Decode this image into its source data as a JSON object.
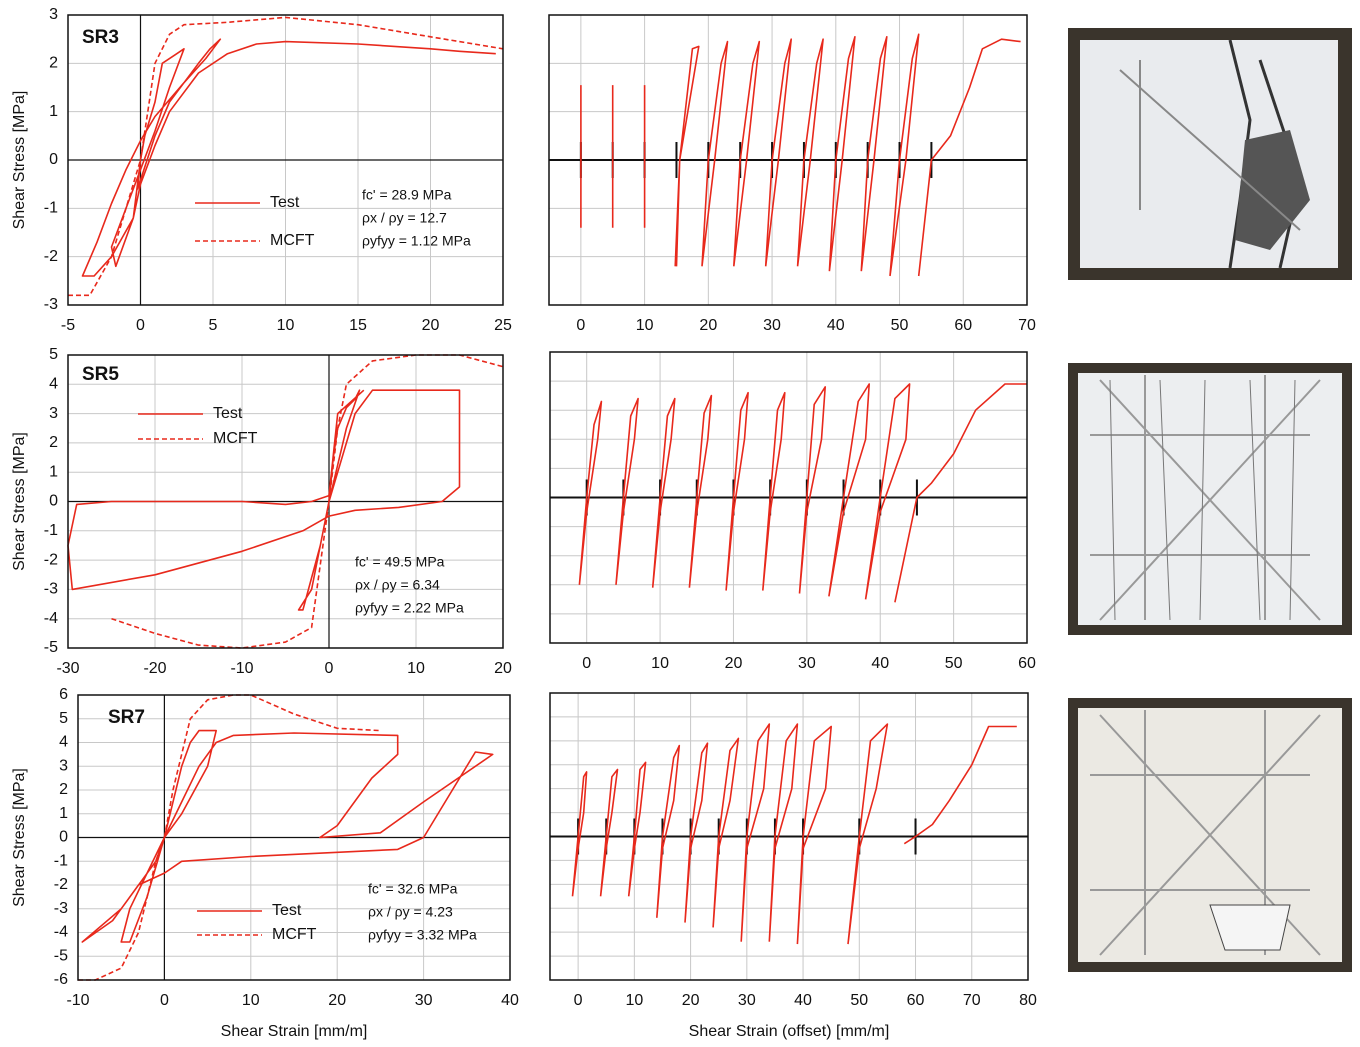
{
  "chart_data": [
    {
      "type": "line",
      "label": "SR3",
      "y_label": "Shear Stress [MPa]",
      "xlim": [
        -5,
        25
      ],
      "xticks": [
        -5,
        0,
        5,
        10,
        15,
        20,
        25
      ],
      "ylim": [
        -3,
        3
      ],
      "yticks": [
        -3,
        -2,
        -1,
        0,
        1,
        2,
        3
      ],
      "show_ytick_labels": true,
      "grid": true,
      "legend": "lower center",
      "annotations": [
        "fc' = 28.9 MPa",
        "ρx / ρy = 12.7",
        "ρyfyy = 1.12 MPa"
      ],
      "series": [
        {
          "name": "Test",
          "color": "#e8291c",
          "dash": false,
          "x": [
            0,
            0.3,
            1,
            1.5,
            2.5,
            3,
            2,
            1,
            0,
            -1,
            -2,
            -1.7,
            -0.5,
            0,
            -0.2,
            1,
            2,
            3,
            4,
            4.8,
            5.5,
            4.5,
            3,
            1,
            0,
            -1,
            -2,
            -3,
            -4,
            -3.2,
            -2,
            -0.5,
            0,
            1,
            2,
            4,
            6,
            8,
            10,
            15,
            20,
            22,
            24.5
          ],
          "y": [
            0,
            0.5,
            1.2,
            2,
            2.2,
            2.3,
            1.5,
            0.6,
            -0.2,
            -1,
            -1.8,
            -2.2,
            -1.2,
            0,
            -0.6,
            0.5,
            1.2,
            1.6,
            2.0,
            2.3,
            2.5,
            2.1,
            1.6,
            0.9,
            0.4,
            -0.2,
            -0.9,
            -1.7,
            -2.4,
            -2.4,
            -2,
            -1.2,
            -0.5,
            0.3,
            1,
            1.8,
            2.2,
            2.4,
            2.45,
            2.4,
            2.3,
            2.25,
            2.2
          ]
        },
        {
          "name": "MCFT",
          "color": "#e8291c",
          "dash": true,
          "x": [
            -5,
            -3.5,
            -2,
            -1,
            0,
            0.5,
            1,
            2,
            3,
            6,
            10,
            15,
            20,
            25
          ],
          "y": [
            -2.8,
            -2.8,
            -2,
            -1,
            0,
            1,
            2,
            2.6,
            2.8,
            2.85,
            2.95,
            2.8,
            2.55,
            2.3
          ]
        }
      ]
    },
    {
      "type": "line",
      "xlim": [
        -5,
        70
      ],
      "xticks": [
        0,
        10,
        20,
        30,
        40,
        50,
        60,
        70
      ],
      "ylim": [
        -3,
        3
      ],
      "yticks": [
        -3,
        -2,
        -1,
        0,
        1,
        2,
        3
      ],
      "show_ytick_labels": false,
      "grid": true,
      "offsets": [
        0,
        5,
        10,
        15,
        20,
        25,
        30,
        35,
        40,
        45,
        50,
        55
      ],
      "series": [
        {
          "color": "#e8291c",
          "dash": false,
          "x": [
            0,
            0,
            null,
            5,
            5,
            null,
            10,
            10,
            null,
            15,
            15.5,
            17.5,
            18.5,
            15.5,
            14.8,
            null,
            19,
            20,
            22,
            23,
            21,
            19,
            null,
            24,
            25,
            27,
            28,
            26,
            24,
            null,
            29,
            30,
            32,
            33,
            31,
            29,
            null,
            34,
            35,
            37,
            38,
            36,
            34,
            null,
            39,
            40,
            42,
            43,
            41,
            39,
            null,
            44,
            45,
            47,
            48,
            46,
            44,
            null,
            48.5,
            50,
            52,
            53,
            51,
            48.5,
            null,
            53,
            55,
            58,
            61,
            63,
            66,
            69
          ],
          "y": [
            -1.4,
            1.55,
            null,
            -1.4,
            1.55,
            null,
            -1.4,
            1.55,
            null,
            -2.2,
            0,
            2.3,
            2.35,
            0,
            -2.2,
            null,
            -2.2,
            0,
            2,
            2.45,
            0,
            -2.2,
            null,
            -2.2,
            0,
            2,
            2.45,
            0,
            -2.2,
            null,
            -2.2,
            0,
            2,
            2.5,
            0,
            -2.2,
            null,
            -2.2,
            0,
            2,
            2.5,
            0,
            -2.2,
            null,
            -2.3,
            0,
            2.1,
            2.55,
            0,
            -2.3,
            null,
            -2.3,
            0,
            2.1,
            2.55,
            0,
            -2.3,
            null,
            -2.4,
            0,
            2.1,
            2.6,
            0,
            -2.4,
            null,
            -2.4,
            0,
            0.5,
            1.5,
            2.3,
            2.5,
            2.45
          ]
        }
      ]
    },
    {
      "type": "line",
      "label": "SR5",
      "y_label": "Shear Stress [MPa]",
      "xlim": [
        -30,
        20
      ],
      "xticks": [
        -30,
        -20,
        -10,
        0,
        10,
        20
      ],
      "ylim": [
        -5,
        5
      ],
      "yticks": [
        -5,
        -4,
        -3,
        -2,
        -1,
        0,
        1,
        2,
        3,
        4,
        5
      ],
      "show_ytick_labels": true,
      "grid": true,
      "legend": "upper left",
      "annotations": [
        "fc' = 49.5 MPa",
        "ρx / ρy = 6.34",
        "ρyfyy = 2.22 MPa"
      ],
      "series": [
        {
          "name": "Test",
          "color": "#e8291c",
          "dash": false,
          "x": [
            0,
            0.5,
            1,
            2,
            3,
            3.5,
            2,
            0,
            -1,
            -2,
            -3.5,
            -3,
            -1,
            0,
            1,
            3,
            5,
            6,
            15,
            15,
            13,
            8,
            3,
            0,
            -3,
            -10,
            -20,
            -29.5,
            -30,
            -29,
            -25,
            -20,
            -10,
            -5,
            -2,
            0,
            1,
            4
          ],
          "y": [
            0,
            1.5,
            2.5,
            3.2,
            3.5,
            3.8,
            2.5,
            0,
            -1.5,
            -3,
            -3.7,
            -3.7,
            -1.5,
            0,
            1,
            3,
            3.8,
            3.8,
            3.8,
            0.5,
            0,
            -0.2,
            -0.3,
            -0.5,
            -1,
            -1.7,
            -2.5,
            -3,
            -1.5,
            -0.1,
            0,
            0,
            0,
            -0.1,
            0,
            0.2,
            3,
            3.8
          ]
        },
        {
          "name": "MCFT",
          "color": "#e8291c",
          "dash": true,
          "x": [
            -25,
            -20,
            -15,
            -10,
            -5,
            -2,
            0,
            1,
            2,
            5,
            10,
            15,
            20
          ],
          "y": [
            -4,
            -4.5,
            -4.9,
            -5,
            -4.8,
            -4.3,
            0,
            2.5,
            4,
            4.8,
            5,
            5,
            4.6
          ]
        }
      ]
    },
    {
      "type": "line",
      "xlim": [
        -5,
        60
      ],
      "xticks": [
        0,
        10,
        20,
        30,
        40,
        50,
        60
      ],
      "ylim": [
        -5,
        5
      ],
      "yticks": [
        -5,
        -4,
        -3,
        -2,
        -1,
        0,
        1,
        2,
        3,
        4,
        5
      ],
      "show_ytick_labels": false,
      "grid": true,
      "offsets": [
        0,
        5,
        10,
        15,
        20,
        25,
        30,
        35,
        40,
        45
      ],
      "series": [
        {
          "color": "#e8291c",
          "dash": false,
          "x": [
            -1,
            0,
            1,
            2,
            1.5,
            0,
            -1,
            null,
            4,
            5,
            6,
            7,
            6.5,
            5,
            4,
            null,
            9,
            10,
            11,
            12,
            11.5,
            10,
            9,
            null,
            14,
            15,
            16,
            17,
            16.5,
            15,
            14,
            null,
            19,
            20,
            21,
            22,
            21.5,
            20,
            19,
            null,
            24,
            25,
            26,
            27,
            26.5,
            25,
            24,
            null,
            29,
            30,
            31,
            32.5,
            32,
            30,
            29,
            null,
            33,
            35,
            37,
            38.5,
            38,
            35,
            33,
            null,
            38,
            40,
            42,
            44,
            43.5,
            40,
            38,
            null,
            42,
            45,
            47,
            50,
            53,
            57,
            60
          ],
          "y": [
            -3,
            0,
            2.5,
            3.3,
            2,
            -0.5,
            -3,
            null,
            -3,
            0,
            2.8,
            3.4,
            2,
            -0.5,
            -3,
            null,
            -3.1,
            0,
            2.8,
            3.4,
            2,
            -0.5,
            -3.1,
            null,
            -3.1,
            0,
            2.9,
            3.5,
            2,
            -0.5,
            -3.1,
            null,
            -3.2,
            0,
            3,
            3.6,
            2,
            -0.5,
            -3.2,
            null,
            -3.2,
            0,
            3,
            3.6,
            2,
            -0.5,
            -3.2,
            null,
            -3.3,
            0,
            3.2,
            3.8,
            2,
            -0.5,
            -3.3,
            null,
            -3.4,
            0,
            3.3,
            3.9,
            2,
            -0.5,
            -3.4,
            null,
            -3.5,
            0,
            3.4,
            3.9,
            2,
            -0.5,
            -3.5,
            null,
            -3.6,
            0,
            0.5,
            1.5,
            3,
            3.9,
            3.9
          ]
        }
      ]
    },
    {
      "type": "line",
      "label": "SR7",
      "y_label": "Shear Stress [MPa]",
      "x_label": "Shear Strain [mm/m]",
      "xlim": [
        -10,
        40
      ],
      "xticks": [
        -10,
        0,
        10,
        20,
        30,
        40
      ],
      "ylim": [
        -6,
        6
      ],
      "yticks": [
        -6,
        -5,
        -4,
        -3,
        -2,
        -1,
        0,
        1,
        2,
        3,
        4,
        5,
        6
      ],
      "show_ytick_labels": true,
      "grid": true,
      "legend": "lower center",
      "annotations": [
        "fc' = 32.6 MPa",
        "ρx / ρy = 4.23",
        "ρyfyy = 3.32 MPa"
      ],
      "series": [
        {
          "name": "Test",
          "color": "#e8291c",
          "dash": false,
          "x": [
            0,
            1,
            2,
            3,
            4,
            6,
            5,
            2,
            0,
            -2,
            -4,
            -5,
            -4,
            -2,
            0,
            2,
            4,
            6,
            8,
            15,
            27,
            27,
            24,
            20,
            18,
            25,
            30,
            38,
            36,
            30,
            27,
            10,
            2,
            0,
            -3,
            -6,
            -9.5,
            -9.5,
            -5,
            -1,
            0
          ],
          "y": [
            0,
            1.5,
            3,
            4,
            4.5,
            4.5,
            3,
            1,
            0,
            -1.5,
            -3,
            -4.4,
            -4.4,
            -2.5,
            0,
            1.5,
            3,
            4,
            4.3,
            4.4,
            4.3,
            3.5,
            2.5,
            0.5,
            0,
            0.2,
            1.5,
            3.5,
            3.6,
            0,
            -0.5,
            -0.8,
            -1,
            -1.5,
            -2,
            -3.5,
            -4.4,
            -4.4,
            -3,
            -1,
            0
          ]
        },
        {
          "name": "MCFT",
          "color": "#e8291c",
          "dash": true,
          "x": [
            -10,
            -8,
            -5,
            -3,
            -1,
            0,
            1,
            3,
            5,
            8,
            10,
            15,
            20,
            25
          ],
          "y": [
            -6,
            -6,
            -5.5,
            -4,
            -1,
            0,
            2,
            5,
            5.8,
            6,
            6,
            5.2,
            4.6,
            4.5
          ]
        }
      ]
    },
    {
      "type": "line",
      "x_label": "Shear Strain (offset) [mm/m]",
      "xlim": [
        -5,
        80
      ],
      "xticks": [
        0,
        10,
        20,
        30,
        40,
        50,
        60,
        70,
        80
      ],
      "ylim": [
        -6,
        6
      ],
      "yticks": [
        -6,
        -5,
        -4,
        -3,
        -2,
        -1,
        0,
        1,
        2,
        3,
        4,
        5,
        6
      ],
      "show_ytick_labels": false,
      "grid": true,
      "offsets": [
        0,
        5,
        10,
        15,
        20,
        25,
        30,
        35,
        40,
        50,
        60
      ],
      "series": [
        {
          "color": "#e8291c",
          "dash": false,
          "x": [
            -1,
            0,
            1,
            1.5,
            1,
            0,
            -1,
            null,
            4,
            5,
            6,
            7,
            6,
            5,
            4,
            null,
            9,
            10,
            11,
            12,
            11,
            10,
            9,
            null,
            14,
            15,
            17,
            18,
            17,
            15,
            14,
            null,
            19,
            20,
            22,
            23,
            22,
            20,
            19,
            null,
            24,
            25,
            27,
            28.5,
            27,
            25,
            24,
            null,
            29,
            30,
            32,
            34,
            33,
            30,
            29,
            null,
            34,
            35,
            37,
            39,
            38,
            35,
            34,
            null,
            39,
            40,
            42,
            45,
            44,
            40,
            39,
            null,
            48,
            50,
            52,
            55,
            53,
            50,
            48,
            null,
            58,
            60,
            63,
            66,
            70,
            73,
            78
          ],
          "y": [
            -2.5,
            0,
            2.5,
            2.7,
            1,
            -0.5,
            -2.5,
            null,
            -2.5,
            0,
            2.5,
            2.8,
            1,
            -0.5,
            -2.5,
            null,
            -2.5,
            0,
            2.8,
            3.1,
            1,
            -0.5,
            -2.5,
            null,
            -3.4,
            0,
            3.3,
            3.8,
            1.5,
            -0.5,
            -3.4,
            null,
            -3.6,
            0,
            3.5,
            3.9,
            1.5,
            -0.5,
            -3.6,
            null,
            -3.8,
            0,
            3.6,
            4.1,
            1.5,
            -0.5,
            -3.8,
            null,
            -4.4,
            0,
            4,
            4.7,
            2,
            -0.5,
            -4.4,
            null,
            -4.4,
            0,
            4,
            4.7,
            2,
            -0.5,
            -4.4,
            null,
            -4.5,
            0,
            4,
            4.6,
            2,
            -0.5,
            -4.5,
            null,
            -4.5,
            0,
            4,
            4.7,
            2,
            -0.5,
            -4.5,
            null,
            -0.3,
            0,
            0.5,
            1.5,
            3,
            4.6,
            4.6
          ]
        }
      ]
    }
  ]
}
